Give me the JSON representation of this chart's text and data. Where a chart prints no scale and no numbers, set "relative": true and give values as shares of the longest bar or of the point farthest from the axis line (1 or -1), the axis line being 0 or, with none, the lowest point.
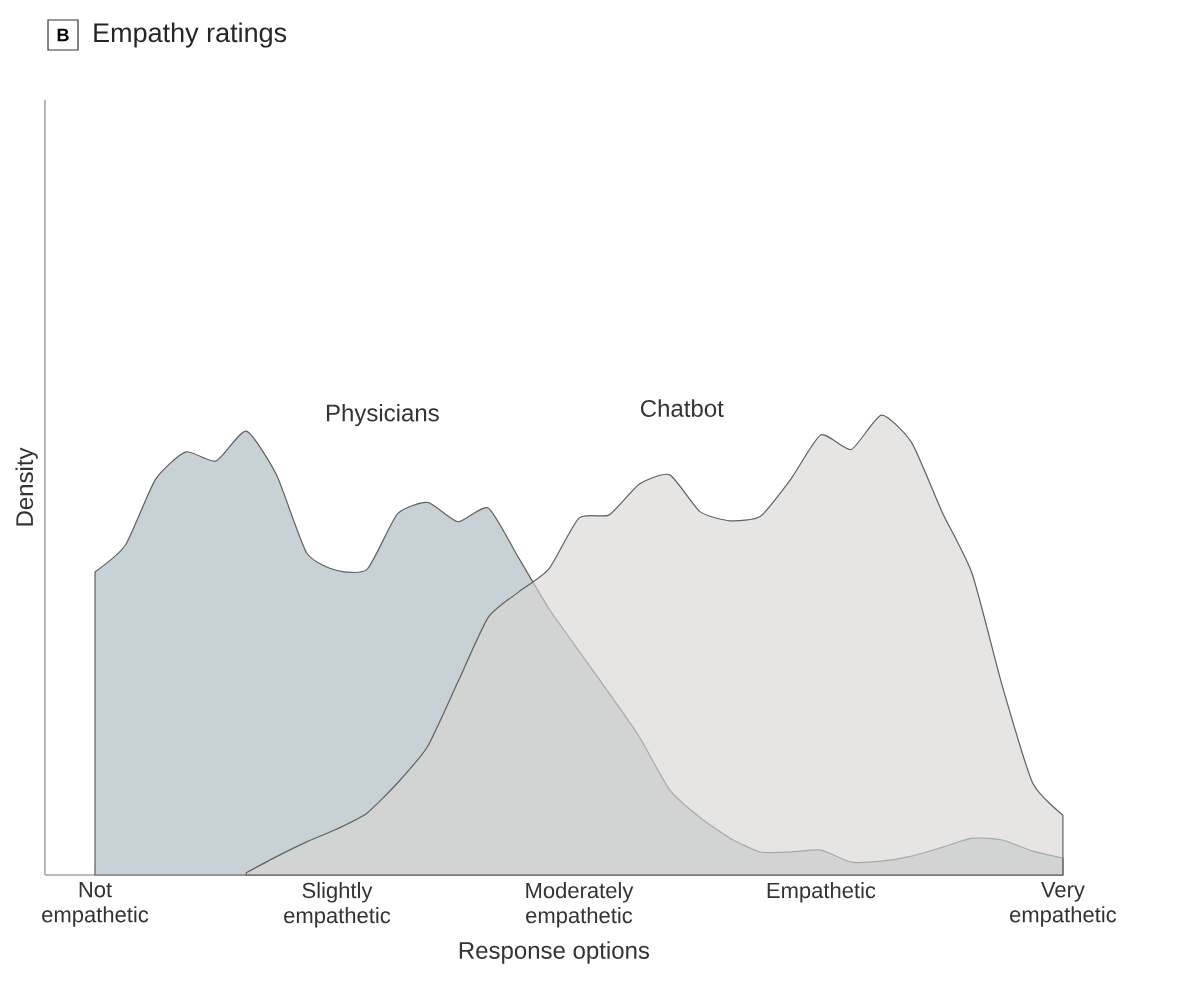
{
  "chart_data": {
    "type": "area",
    "title": "Empathy ratings",
    "annotations": [
      "B"
    ],
    "xlabel": "Response options",
    "ylabel": "Density",
    "relative": true,
    "categories": [
      "Not empathetic",
      null,
      null,
      null,
      null,
      null,
      null,
      null,
      "Slightly empathetic",
      null,
      null,
      null,
      null,
      null,
      null,
      null,
      "Moderately empathetic",
      null,
      null,
      null,
      null,
      null,
      null,
      null,
      "Empathetic",
      null,
      null,
      null,
      null,
      null,
      null,
      null,
      "Very empathetic"
    ],
    "series": [
      {
        "name": "Physicians",
        "color": "#c8d2d6",
        "values": [
          0.659,
          0.717,
          0.86,
          0.92,
          0.9,
          0.965,
          0.87,
          0.7,
          0.662,
          0.665,
          0.785,
          0.81,
          0.768,
          0.798,
          0.69,
          0.58,
          0.487,
          0.395,
          0.3,
          0.185,
          0.125,
          0.08,
          0.05,
          0.05,
          0.054,
          0.028,
          0.03,
          0.041,
          0.06,
          0.08,
          0.076,
          0.052,
          0.037
        ]
      },
      {
        "name": "Chatbot",
        "color": "#d6d5d2",
        "values": [
          null,
          null,
          null,
          null,
          null,
          0.005,
          0.04,
          0.072,
          0.1,
          0.135,
          0.2,
          0.28,
          0.42,
          0.56,
          0.615,
          0.665,
          0.776,
          0.783,
          0.85,
          0.87,
          0.79,
          0.77,
          0.78,
          0.86,
          0.957,
          0.925,
          1.0,
          0.94,
          0.79,
          0.655,
          0.41,
          0.2,
          0.13
        ]
      }
    ]
  }
}
